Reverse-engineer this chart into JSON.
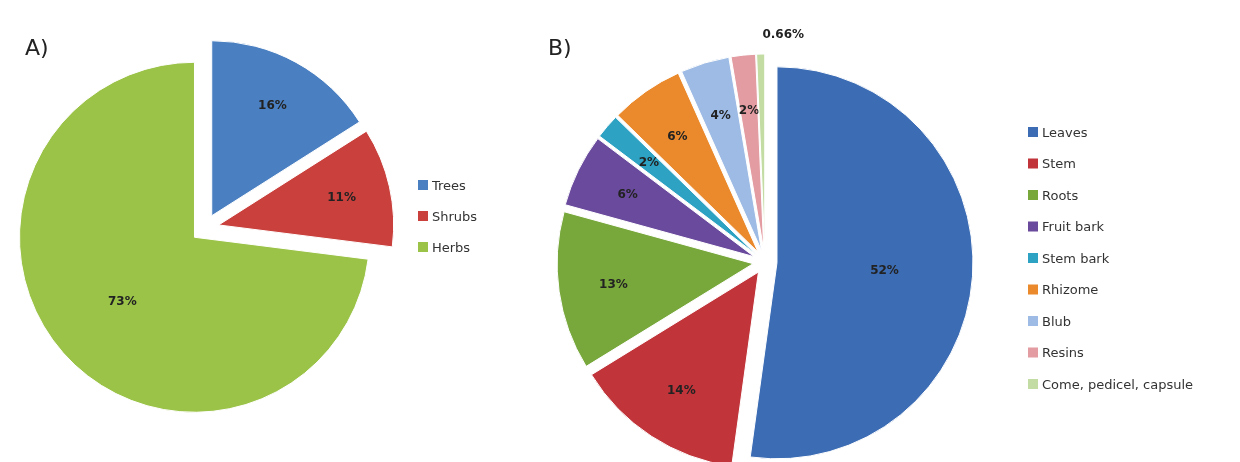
{
  "chart_data": [
    {
      "type": "pie",
      "title": "A)",
      "categories": [
        "Trees",
        "Shrubs",
        "Herbs"
      ],
      "values": [
        16,
        11,
        73
      ],
      "colors": [
        "#4a7fc1",
        "#c9403c",
        "#9bc348"
      ],
      "value_labels": [
        "16%",
        "11%",
        "73%"
      ],
      "legend": "right"
    },
    {
      "type": "pie",
      "title": "B)",
      "categories": [
        "Leaves",
        "Stem",
        "Roots",
        "Fruit bark",
        "Stem bark",
        "Rhizome",
        "Blub",
        "Resins",
        "Come, pedicel, capsule"
      ],
      "values": [
        52,
        14,
        13,
        6,
        2,
        6,
        4,
        2,
        0.66
      ],
      "colors": [
        "#3b6cb4",
        "#c0343a",
        "#78a83c",
        "#6a4a9c",
        "#2ea2c2",
        "#ea8a2c",
        "#9dbbe4",
        "#e39ca2",
        "#c3dca4"
      ],
      "value_labels": [
        "52%",
        "14%",
        "13%",
        "6%",
        "2%",
        "6%",
        "4%",
        "2%",
        "0.66%"
      ],
      "legend": "right"
    }
  ]
}
